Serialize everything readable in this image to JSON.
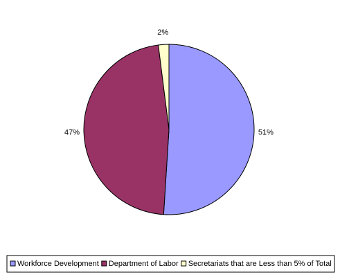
{
  "chart_data": {
    "type": "pie",
    "categories": [
      "Workforce Development",
      "Department of Labor",
      "Secretariats that are Less than 5% of Total"
    ],
    "values": [
      51,
      47,
      2
    ],
    "value_labels": [
      "51%",
      "47%",
      "2%"
    ],
    "colors": [
      "#9999ff",
      "#993366",
      "#ffffcc"
    ],
    "legend": "bottom"
  }
}
